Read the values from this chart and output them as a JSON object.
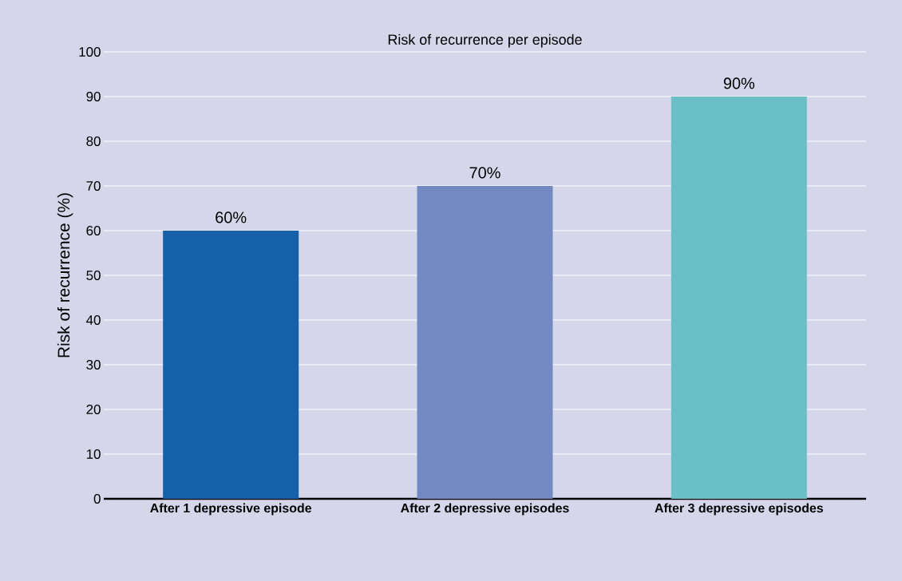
{
  "chart_data": {
    "type": "bar",
    "title": "Risk of recurrence per episode",
    "ylabel": "Risk of recurrence (%)",
    "categories": [
      "After 1 depressive episode",
      "After 2 depressive episodes",
      "After 3 depressive episodes"
    ],
    "values": [
      60,
      70,
      90
    ],
    "colors": [
      "#1560a8",
      "#7389c2",
      "#6bbfc6"
    ],
    "value_labels": [
      "60%",
      "70%",
      "90%"
    ],
    "ylim": [
      0,
      100
    ],
    "yticks": [
      0,
      10,
      20,
      30,
      40,
      50,
      60,
      70,
      80,
      90,
      100
    ],
    "grid": "y"
  }
}
